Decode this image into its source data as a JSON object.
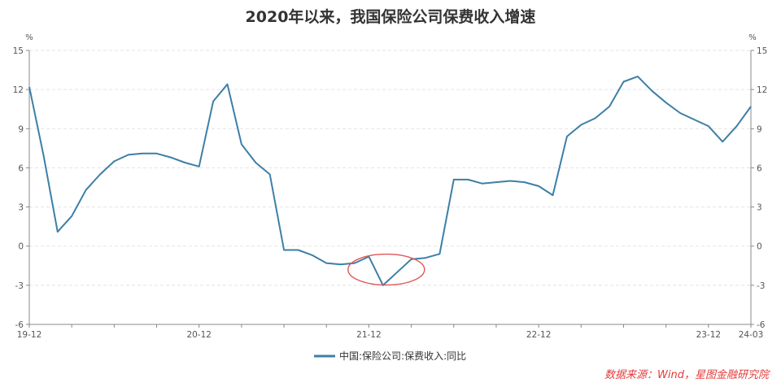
{
  "chart_data": {
    "type": "line",
    "title": "2020年以来，我国保险公司保费收入增速",
    "unit_left": "%",
    "unit_right": "%",
    "ylim": [
      -6,
      15
    ],
    "yticks": [
      -6,
      -3,
      0,
      3,
      6,
      9,
      12,
      15
    ],
    "grid": true,
    "legend_position": "bottom",
    "x_tick_labels": [
      "19-12",
      "20-12",
      "21-12",
      "22-12",
      "23-12",
      "24-03"
    ],
    "x_tick_index": [
      0,
      12,
      24,
      36,
      48,
      51
    ],
    "x": [
      "19-12",
      "20-01",
      "20-02",
      "20-03",
      "20-04",
      "20-05",
      "20-06",
      "20-07",
      "20-08",
      "20-09",
      "20-10",
      "20-11",
      "20-12",
      "21-01",
      "21-02",
      "21-03",
      "21-04",
      "21-05",
      "21-06",
      "21-07",
      "21-08",
      "21-09",
      "21-10",
      "21-11",
      "21-12",
      "22-01",
      "22-02",
      "22-03",
      "22-04",
      "22-05",
      "22-06",
      "22-07",
      "22-08",
      "22-09",
      "22-10",
      "22-11",
      "22-12",
      "23-01",
      "23-02",
      "23-03",
      "23-04",
      "23-05",
      "23-06",
      "23-07",
      "23-08",
      "23-09",
      "23-10",
      "23-11",
      "23-12",
      "24-01",
      "24-02",
      "24-03"
    ],
    "series": [
      {
        "name": "中国:保险公司:保费收入:同比",
        "color": "#3d7fa6",
        "values": [
          12.2,
          7.0,
          1.1,
          2.3,
          4.3,
          5.5,
          6.5,
          7.0,
          7.1,
          7.1,
          6.8,
          6.4,
          6.1,
          11.1,
          12.4,
          7.8,
          6.4,
          5.5,
          -0.3,
          -0.3,
          -0.7,
          -1.3,
          -1.4,
          -1.3,
          -0.8,
          -3.0,
          -2.0,
          -1.0,
          -0.9,
          -0.6,
          5.1,
          5.1,
          4.8,
          4.9,
          5.0,
          4.9,
          4.6,
          3.9,
          8.4,
          9.3,
          9.8,
          10.7,
          12.6,
          13.0,
          11.9,
          11.0,
          10.2,
          9.7,
          9.2,
          8.0,
          9.2,
          10.7
        ]
      }
    ],
    "annotation": {
      "type": "ellipse",
      "color": "#e05656",
      "center_x": "22-01",
      "center_y": -1.8
    }
  },
  "source": "数据来源：Wind，星图金融研究院"
}
